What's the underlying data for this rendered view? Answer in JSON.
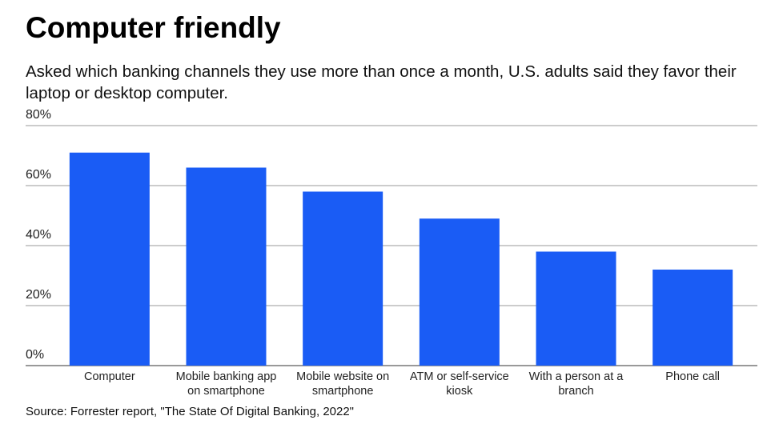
{
  "chart_data": {
    "type": "bar",
    "title": "Computer friendly",
    "subtitle": "Asked which banking channels they use more than once a month, U.S. adults said they favor their laptop or desktop computer.",
    "source": "Source: Forrester report, \"The State Of Digital Banking, 2022\"",
    "categories": [
      "Computer",
      "Mobile banking app on smartphone",
      "Mobile website on smartphone",
      "ATM or self-service kiosk",
      "With a person at a branch",
      "Phone call"
    ],
    "values": [
      71,
      66,
      58,
      49,
      38,
      32
    ],
    "color": "#1a5cf5",
    "ylim": [
      0,
      80
    ],
    "yticks": [
      {
        "value": 0,
        "label": "0%"
      },
      {
        "value": 20,
        "label": "20%"
      },
      {
        "value": 40,
        "label": "40%"
      },
      {
        "value": 60,
        "label": "60%"
      },
      {
        "value": 80,
        "label": "80%"
      }
    ],
    "grid": true
  }
}
